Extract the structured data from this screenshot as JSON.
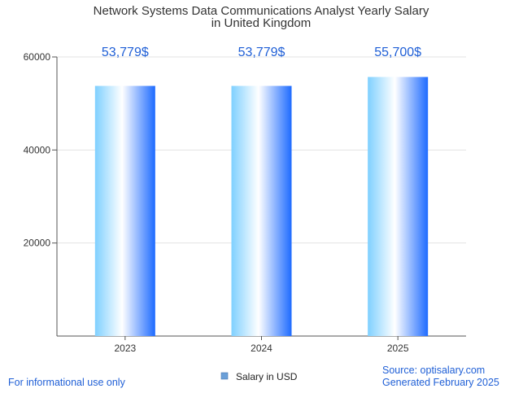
{
  "chart_data": {
    "type": "bar",
    "title_line1": "Network Systems Data Communications Analyst Yearly Salary",
    "title_line2": "in United Kingdom",
    "categories": [
      "2023",
      "2024",
      "2025"
    ],
    "series": [
      {
        "name": "Salary in USD",
        "values": [
          53779,
          53779,
          55700
        ],
        "labels": [
          "53,779$",
          "53,779$",
          "55,700$"
        ]
      }
    ],
    "ylim": [
      0,
      60000
    ],
    "yticks": [
      "20000",
      "40000",
      "60000"
    ],
    "ytick_values": [
      20000,
      40000,
      60000
    ],
    "grid": true,
    "legend_position": "bottom-center"
  },
  "footer": {
    "left": "For informational use only",
    "source": "Source: optisalary.com",
    "generated": "Generated February 2025"
  },
  "colors": {
    "bar_gradient": [
      "#7fd0ff",
      "#ffffff",
      "#1e6bff"
    ],
    "label_color": "#1f5fd6",
    "legend_swatch": "#6a9fd8"
  }
}
